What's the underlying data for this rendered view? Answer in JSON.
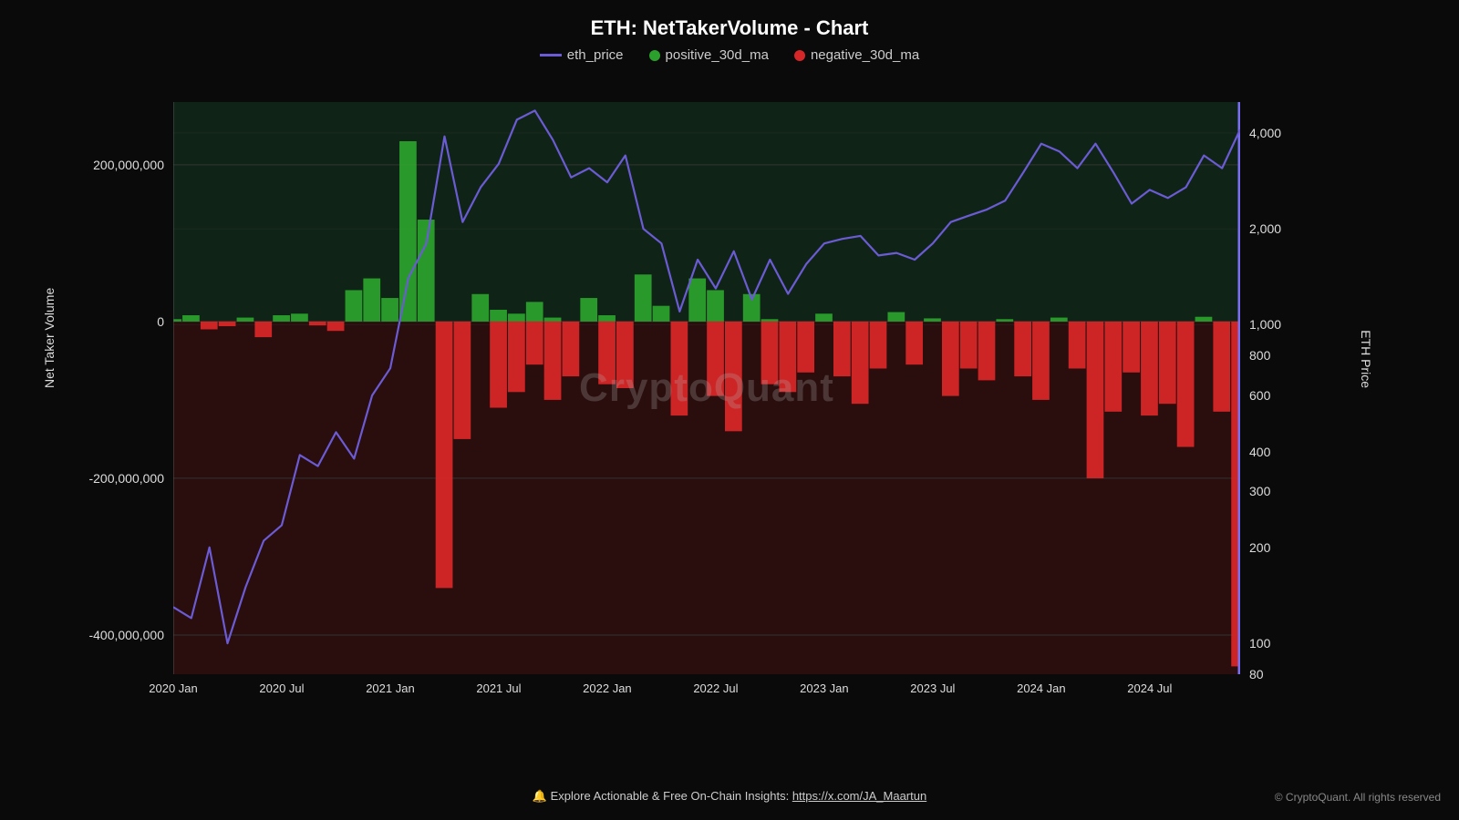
{
  "chart": {
    "title": "ETH: NetTakerVolume - Chart",
    "watermark": "CryptoQuant",
    "type": "combo-bar-line",
    "background_color": "#0a0a0a",
    "plot_bg_upper": "#0f2416",
    "plot_bg_lower": "#2a0d0d",
    "grid_color": "#333333",
    "legend": {
      "items": [
        {
          "label": "eth_price",
          "kind": "line",
          "color": "#6b5bd4"
        },
        {
          "label": "positive_30d_ma",
          "kind": "dot",
          "color": "#2ca02c"
        },
        {
          "label": "negative_30d_ma",
          "kind": "dot",
          "color": "#d62728"
        }
      ]
    },
    "x_axis": {
      "ticks": [
        "2020 Jan",
        "2020 Jul",
        "2021 Jan",
        "2021 Jul",
        "2022 Jan",
        "2022 Jul",
        "2023 Jan",
        "2023 Jul",
        "2024 Jan",
        "2024 Jul"
      ],
      "n_points": 60,
      "label_fontsize": 13,
      "label_color": "#dddddd"
    },
    "y_left": {
      "title": "Net Taker Volume",
      "scale": "linear",
      "min": -450000000,
      "max": 280000000,
      "ticks": [
        200000000,
        0,
        -200000000,
        -400000000
      ],
      "tick_labels": [
        "200,000,000",
        "0",
        "-200,000,000",
        "-400,000,000"
      ],
      "title_fontsize": 14,
      "label_color": "#dddddd"
    },
    "y_right": {
      "title": "ETH Price",
      "scale": "log",
      "min": 80,
      "max": 5000,
      "ticks": [
        4000,
        2000,
        1000,
        800,
        600,
        400,
        300,
        200,
        100,
        80
      ],
      "tick_labels": [
        "4,000",
        "2,000",
        "1,000",
        "800",
        "600",
        "400",
        "300",
        "200",
        "100",
        "80"
      ],
      "title_fontsize": 14,
      "label_color": "#dddddd"
    },
    "series": {
      "positive_30d_ma": {
        "color": "#2ca02c",
        "opacity": 0.95,
        "values": [
          3,
          8,
          0,
          0,
          5,
          0,
          8,
          10,
          0,
          0,
          40,
          55,
          30,
          230,
          130,
          0,
          0,
          35,
          15,
          10,
          25,
          5,
          0,
          30,
          8,
          0,
          60,
          20,
          0,
          55,
          40,
          0,
          35,
          3,
          0,
          0,
          10,
          0,
          0,
          0,
          12,
          0,
          4,
          0,
          0,
          0,
          3,
          0,
          0,
          5,
          0,
          0,
          0,
          0,
          0,
          0,
          0,
          6,
          0,
          0
        ]
      },
      "negative_30d_ma": {
        "color": "#d62728",
        "opacity": 0.95,
        "values": [
          0,
          0,
          -10,
          -6,
          0,
          -20,
          0,
          0,
          -5,
          -12,
          0,
          0,
          0,
          0,
          0,
          -340,
          -150,
          0,
          -110,
          -90,
          -55,
          -100,
          -70,
          0,
          -80,
          -85,
          0,
          0,
          -120,
          0,
          -95,
          -140,
          0,
          -80,
          -90,
          -65,
          0,
          -70,
          -105,
          -60,
          0,
          -55,
          0,
          -95,
          -60,
          -75,
          0,
          -70,
          -100,
          0,
          -60,
          -200,
          -115,
          -65,
          -120,
          -105,
          -160,
          0,
          -115,
          -440
        ]
      },
      "eth_price": {
        "color": "#6b5bd4",
        "line_width": 2.2,
        "values": [
          130,
          120,
          200,
          100,
          150,
          210,
          235,
          390,
          360,
          460,
          380,
          600,
          730,
          1400,
          1800,
          3900,
          2100,
          2700,
          3200,
          4400,
          4700,
          3800,
          2900,
          3100,
          2800,
          3400,
          2000,
          1800,
          1100,
          1600,
          1300,
          1700,
          1200,
          1600,
          1250,
          1550,
          1800,
          1860,
          1900,
          1650,
          1680,
          1600,
          1800,
          2100,
          2200,
          2300,
          2450,
          3000,
          3700,
          3500,
          3100,
          3700,
          3000,
          2400,
          2650,
          2500,
          2700,
          3400,
          3100,
          4100
        ]
      }
    },
    "footer": {
      "icon": "🔔",
      "text": "Explore Actionable & Free On-Chain Insights:",
      "link_text": "https://x.com/JA_Maartun",
      "link_href": "https://x.com/JA_Maartun"
    },
    "copyright": "© CryptoQuant. All rights reserved"
  }
}
